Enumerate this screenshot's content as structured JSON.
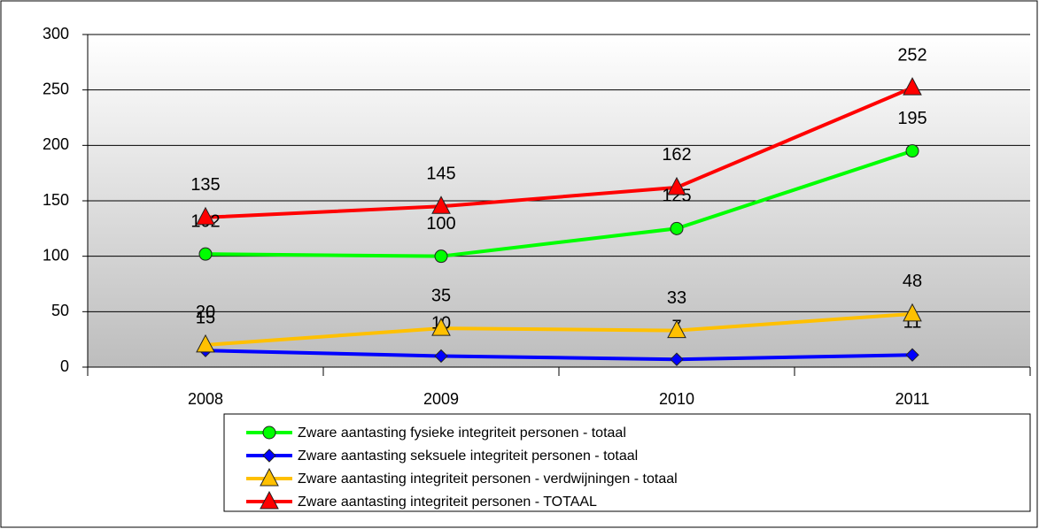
{
  "chart_data": {
    "type": "line",
    "categories": [
      "2008",
      "2009",
      "2010",
      "2011"
    ],
    "series": [
      {
        "name": "Zware aantasting fysieke integriteit personen - totaal",
        "color": "#00ff00",
        "marker": "circle",
        "values": [
          102,
          100,
          125,
          195
        ]
      },
      {
        "name": "Zware aantasting seksuele integriteit personen - totaal",
        "color": "#0000ff",
        "marker": "diamond",
        "values": [
          15,
          10,
          7,
          11
        ]
      },
      {
        "name": "Zware aantasting integriteit personen - verdwijningen - totaal",
        "color": "#ffc000",
        "marker": "triangle",
        "values": [
          20,
          35,
          33,
          48
        ]
      },
      {
        "name": "Zware aantasting integriteit personen - TOTAAL",
        "color": "#ff0000",
        "marker": "triangle",
        "values": [
          135,
          145,
          162,
          252
        ]
      }
    ],
    "ylim": [
      0,
      300
    ],
    "yticks": [
      0,
      50,
      100,
      150,
      200,
      250,
      300
    ],
    "grid": true,
    "legend": "bottom"
  }
}
